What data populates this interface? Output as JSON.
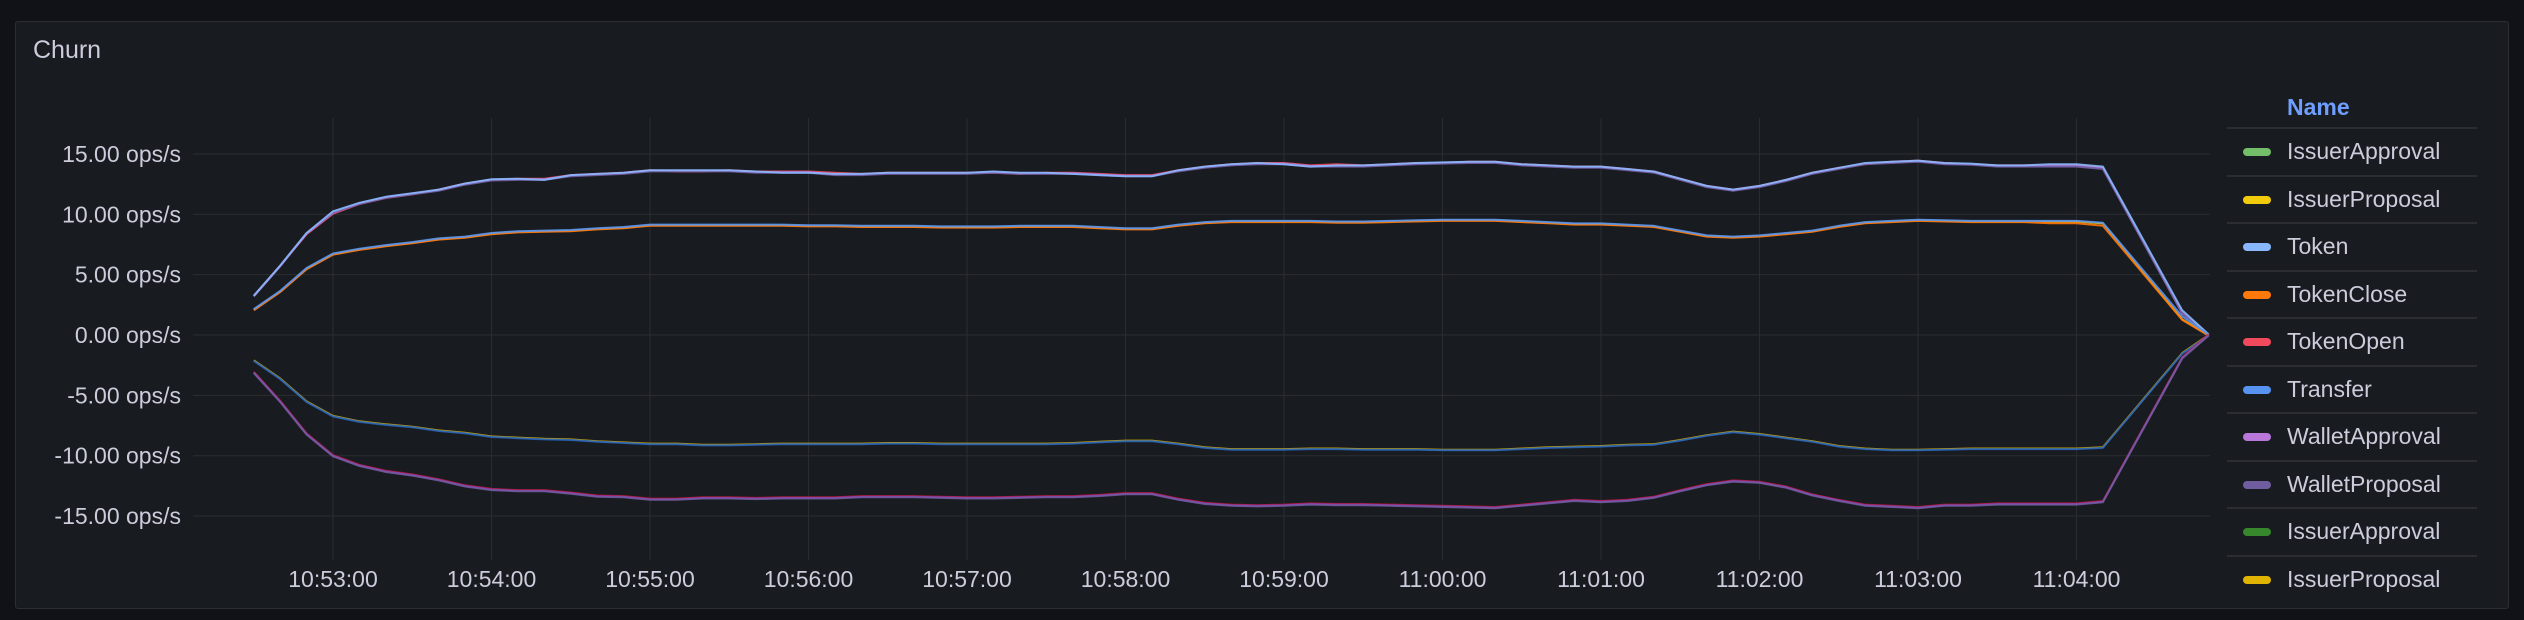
{
  "panel": {
    "title": "Churn"
  },
  "legend": {
    "header": "Name",
    "items": [
      {
        "name": "IssuerApproval",
        "color": "#73BF69"
      },
      {
        "name": "IssuerProposal",
        "color": "#F2CC0C"
      },
      {
        "name": "Token",
        "color": "#8AB8FF"
      },
      {
        "name": "TokenClose",
        "color": "#FF780A"
      },
      {
        "name": "TokenOpen",
        "color": "#F2495C"
      },
      {
        "name": "Transfer",
        "color": "#5794F2"
      },
      {
        "name": "WalletApproval",
        "color": "#B877D9"
      },
      {
        "name": "WalletProposal",
        "color": "#705DA0"
      },
      {
        "name": "IssuerApproval",
        "color": "#37872D"
      },
      {
        "name": "IssuerProposal",
        "color": "#E0B400"
      }
    ]
  },
  "chart_data": {
    "type": "line",
    "title": "Churn",
    "xlabel": "",
    "ylabel": "",
    "unit": "ops/s",
    "ylim": [
      -18,
      18
    ],
    "yticks": [
      "15.00 ops/s",
      "10.00 ops/s",
      "5.00 ops/s",
      "0.00 ops/s",
      "-5.00 ops/s",
      "-10.00 ops/s",
      "-15.00 ops/s"
    ],
    "ytick_values": [
      15,
      10,
      5,
      0,
      -5,
      -10,
      -15
    ],
    "xticks": [
      "10:53:00",
      "10:54:00",
      "10:55:00",
      "10:56:00",
      "10:57:00",
      "10:58:00",
      "10:59:00",
      "11:00:00",
      "11:01:00",
      "11:02:00",
      "11:03:00",
      "11:04:00"
    ],
    "grid": true,
    "legend_position": "right",
    "x": [
      "10:52:30",
      "10:52:40",
      "10:52:50",
      "10:53:00",
      "10:53:10",
      "10:53:20",
      "10:53:30",
      "10:53:40",
      "10:53:50",
      "10:54:00",
      "10:54:10",
      "10:54:20",
      "10:54:30",
      "10:54:40",
      "10:54:50",
      "10:55:00",
      "10:55:10",
      "10:55:20",
      "10:55:30",
      "10:55:40",
      "10:55:50",
      "10:56:00",
      "10:56:10",
      "10:56:20",
      "10:56:30",
      "10:56:40",
      "10:56:50",
      "10:57:00",
      "10:57:10",
      "10:57:20",
      "10:57:30",
      "10:57:40",
      "10:57:50",
      "10:58:00",
      "10:58:10",
      "10:58:20",
      "10:58:30",
      "10:58:40",
      "10:58:50",
      "10:59:00",
      "10:59:10",
      "10:59:20",
      "10:59:30",
      "10:59:40",
      "10:59:50",
      "11:00:00",
      "11:00:10",
      "11:00:20",
      "11:00:30",
      "11:00:40",
      "11:00:50",
      "11:01:00",
      "11:01:10",
      "11:01:20",
      "11:01:30",
      "11:01:40",
      "11:01:50",
      "11:02:00",
      "11:02:10",
      "11:02:20",
      "11:02:30",
      "11:02:40",
      "11:02:50",
      "11:03:00",
      "11:03:10",
      "11:03:20",
      "11:03:30",
      "11:03:40",
      "11:03:50",
      "11:04:00",
      "11:04:10",
      "11:04:40",
      "11:04:50"
    ],
    "series": [
      {
        "name": "TokenOpen",
        "group": "upper",
        "color": "#F2495C",
        "values": [
          3.2,
          5.7,
          8.3,
          10.0,
          10.8,
          11.3,
          11.6,
          12.0,
          12.5,
          12.8,
          12.9,
          12.9,
          13.2,
          13.3,
          13.4,
          13.6,
          13.5,
          13.5,
          13.6,
          13.5,
          13.5,
          13.5,
          13.4,
          13.3,
          13.4,
          13.4,
          13.4,
          13.4,
          13.4,
          13.3,
          13.4,
          13.4,
          13.3,
          13.2,
          13.2,
          13.6,
          13.9,
          14.1,
          14.2,
          14.2,
          14.0,
          14.1,
          14.0,
          14.1,
          14.2,
          14.2,
          14.3,
          14.3,
          14.1,
          14.0,
          13.9,
          13.9,
          13.7,
          13.5,
          12.9,
          12.3,
          12.0,
          12.3,
          12.8,
          13.4,
          13.8,
          14.1,
          14.3,
          14.4,
          14.2,
          14.1,
          14.0,
          14.0,
          14.0,
          14.0,
          13.8,
          1.8,
          0.0
        ]
      },
      {
        "name": "WalletApproval",
        "group": "upper",
        "color": "#B877D9",
        "values": [
          3.2,
          5.7,
          8.4,
          10.1,
          10.9,
          11.4,
          11.7,
          12.0,
          12.5,
          12.85,
          12.9,
          12.9,
          13.2,
          13.3,
          13.4,
          13.6,
          13.6,
          13.6,
          13.6,
          13.5,
          13.5,
          13.5,
          13.3,
          13.3,
          13.4,
          13.4,
          13.4,
          13.4,
          13.5,
          13.4,
          13.4,
          13.4,
          13.3,
          13.2,
          13.2,
          13.6,
          13.9,
          14.1,
          14.2,
          14.2,
          14.0,
          14.0,
          14.0,
          14.1,
          14.2,
          14.25,
          14.3,
          14.3,
          14.1,
          14.0,
          13.9,
          13.9,
          13.7,
          13.5,
          12.9,
          12.3,
          12.0,
          12.3,
          12.8,
          13.4,
          13.8,
          14.2,
          14.3,
          14.4,
          14.2,
          14.15,
          14.0,
          14.0,
          14.0,
          14.0,
          13.8,
          1.8,
          0.0
        ]
      },
      {
        "name": "WalletProposal",
        "group": "upper",
        "color": "#705DA0",
        "values": [
          3.3,
          5.8,
          8.5,
          10.2,
          10.9,
          11.4,
          11.7,
          12.0,
          12.5,
          12.85,
          12.9,
          12.9,
          13.2,
          13.3,
          13.4,
          13.6,
          13.6,
          13.6,
          13.6,
          13.5,
          13.5,
          13.5,
          13.3,
          13.3,
          13.4,
          13.4,
          13.4,
          13.4,
          13.5,
          13.4,
          13.4,
          13.4,
          13.3,
          13.2,
          13.2,
          13.6,
          13.9,
          14.1,
          14.2,
          14.2,
          14.0,
          14.0,
          14.0,
          14.1,
          14.2,
          14.25,
          14.3,
          14.3,
          14.1,
          14.0,
          13.9,
          13.9,
          13.7,
          13.5,
          12.9,
          12.3,
          12.0,
          12.3,
          12.8,
          13.4,
          13.8,
          14.2,
          14.3,
          14.4,
          14.2,
          14.15,
          14.0,
          14.0,
          14.0,
          14.0,
          13.8,
          1.9,
          0.0
        ]
      },
      {
        "name": "Token",
        "group": "upper",
        "color": "#8AB8FF",
        "values": [
          3.2,
          5.7,
          8.4,
          10.2,
          10.9,
          11.4,
          11.7,
          12.0,
          12.5,
          12.85,
          12.9,
          12.8,
          13.2,
          13.3,
          13.4,
          13.6,
          13.6,
          13.6,
          13.6,
          13.5,
          13.4,
          13.4,
          13.3,
          13.3,
          13.4,
          13.4,
          13.4,
          13.4,
          13.5,
          13.4,
          13.4,
          13.3,
          13.2,
          13.1,
          13.1,
          13.6,
          13.9,
          14.1,
          14.2,
          14.1,
          13.9,
          14.0,
          14.0,
          14.1,
          14.2,
          14.25,
          14.3,
          14.3,
          14.1,
          14.0,
          13.9,
          13.9,
          13.7,
          13.5,
          12.9,
          12.3,
          12.0,
          12.3,
          12.8,
          13.4,
          13.8,
          14.2,
          14.3,
          14.4,
          14.2,
          14.15,
          14.0,
          14.0,
          14.1,
          14.1,
          13.9,
          2.0,
          0.0
        ]
      },
      {
        "name": "IssuerProposal",
        "group": "lower",
        "color": "#F2CC0C",
        "values": [
          2.1,
          3.6,
          5.5,
          6.7,
          7.1,
          7.4,
          7.65,
          7.95,
          8.1,
          8.4,
          8.55,
          8.6,
          8.65,
          8.8,
          8.9,
          9.1,
          9.1,
          9.1,
          9.1,
          9.1,
          9.1,
          9.05,
          9.05,
          9.0,
          9.0,
          9.0,
          8.95,
          8.95,
          8.95,
          9.0,
          9.0,
          9.0,
          8.9,
          8.8,
          8.8,
          9.1,
          9.3,
          9.4,
          9.4,
          9.4,
          9.4,
          9.35,
          9.35,
          9.4,
          9.45,
          9.5,
          9.5,
          9.5,
          9.4,
          9.3,
          9.2,
          9.2,
          9.1,
          9.0,
          8.6,
          8.2,
          8.1,
          8.2,
          8.4,
          8.6,
          9.0,
          9.3,
          9.4,
          9.5,
          9.45,
          9.4,
          9.4,
          9.4,
          9.4,
          9.4,
          9.25,
          1.3,
          0.0
        ]
      },
      {
        "name": "TokenClose",
        "group": "lower",
        "color": "#FF780A",
        "values": [
          2.1,
          3.6,
          5.5,
          6.7,
          7.1,
          7.4,
          7.65,
          7.95,
          8.1,
          8.4,
          8.55,
          8.6,
          8.65,
          8.8,
          8.9,
          9.1,
          9.1,
          9.1,
          9.1,
          9.1,
          9.1,
          9.05,
          9.05,
          9.0,
          9.0,
          9.0,
          8.95,
          8.95,
          8.95,
          9.0,
          9.0,
          9.0,
          8.9,
          8.8,
          8.8,
          9.1,
          9.3,
          9.4,
          9.4,
          9.4,
          9.4,
          9.35,
          9.35,
          9.4,
          9.45,
          9.5,
          9.5,
          9.5,
          9.4,
          9.3,
          9.2,
          9.2,
          9.1,
          9.0,
          8.6,
          8.2,
          8.1,
          8.2,
          8.4,
          8.6,
          9.0,
          9.3,
          9.4,
          9.5,
          9.45,
          9.4,
          9.4,
          9.4,
          9.3,
          9.3,
          9.1,
          1.3,
          0.0
        ]
      },
      {
        "name": "Transfer",
        "group": "lower",
        "color": "#5794F2",
        "values": [
          2.1,
          3.6,
          5.5,
          6.7,
          7.1,
          7.4,
          7.65,
          7.95,
          8.1,
          8.4,
          8.55,
          8.6,
          8.65,
          8.8,
          8.9,
          9.1,
          9.1,
          9.1,
          9.1,
          9.1,
          9.1,
          9.05,
          9.05,
          9.0,
          9.0,
          9.0,
          8.95,
          8.95,
          8.95,
          9.0,
          9.0,
          9.0,
          8.9,
          8.8,
          8.8,
          9.1,
          9.3,
          9.4,
          9.4,
          9.4,
          9.4,
          9.35,
          9.35,
          9.4,
          9.45,
          9.5,
          9.5,
          9.5,
          9.4,
          9.3,
          9.2,
          9.2,
          9.1,
          9.0,
          8.6,
          8.2,
          8.1,
          8.2,
          8.4,
          8.6,
          9.0,
          9.3,
          9.4,
          9.5,
          9.45,
          9.4,
          9.4,
          9.4,
          9.4,
          9.4,
          9.25,
          1.5,
          0.0
        ]
      },
      {
        "name": "IssuerProposal (neg)",
        "group": "neg-upper",
        "color": "#E0B400",
        "values": [
          -2.1,
          -3.6,
          -5.5,
          -6.7,
          -7.15,
          -7.4,
          -7.6,
          -7.9,
          -8.1,
          -8.4,
          -8.5,
          -8.6,
          -8.65,
          -8.8,
          -8.9,
          -9.0,
          -9.0,
          -9.1,
          -9.1,
          -9.05,
          -9.0,
          -9.0,
          -9.0,
          -9.0,
          -8.95,
          -8.95,
          -9.0,
          -9.0,
          -9.0,
          -9.0,
          -9.0,
          -8.95,
          -8.85,
          -8.75,
          -8.75,
          -9.0,
          -9.3,
          -9.45,
          -9.45,
          -9.45,
          -9.4,
          -9.4,
          -9.45,
          -9.45,
          -9.45,
          -9.5,
          -9.5,
          -9.5,
          -9.4,
          -9.3,
          -9.25,
          -9.2,
          -9.1,
          -9.05,
          -8.7,
          -8.3,
          -8.0,
          -8.2,
          -8.5,
          -8.8,
          -9.2,
          -9.4,
          -9.5,
          -9.5,
          -9.45,
          -9.4,
          -9.4,
          -9.4,
          -9.4,
          -9.4,
          -9.3,
          -1.5,
          0.0
        ]
      },
      {
        "name": "Transfer (neg)",
        "group": "neg-upper",
        "color": "#1F60C4",
        "values": [
          -2.1,
          -3.6,
          -5.5,
          -6.7,
          -7.15,
          -7.4,
          -7.6,
          -7.9,
          -8.1,
          -8.4,
          -8.5,
          -8.6,
          -8.65,
          -8.8,
          -8.9,
          -9.0,
          -9.0,
          -9.1,
          -9.1,
          -9.05,
          -9.0,
          -9.0,
          -9.0,
          -9.0,
          -8.95,
          -8.95,
          -9.0,
          -9.0,
          -9.0,
          -9.0,
          -9.0,
          -8.95,
          -8.85,
          -8.75,
          -8.75,
          -9.0,
          -9.3,
          -9.45,
          -9.45,
          -9.45,
          -9.4,
          -9.4,
          -9.45,
          -9.45,
          -9.45,
          -9.5,
          -9.5,
          -9.5,
          -9.4,
          -9.3,
          -9.25,
          -9.2,
          -9.1,
          -9.05,
          -8.7,
          -8.3,
          -8.0,
          -8.2,
          -8.5,
          -8.8,
          -9.2,
          -9.4,
          -9.5,
          -9.5,
          -9.45,
          -9.4,
          -9.4,
          -9.4,
          -9.4,
          -9.4,
          -9.3,
          -1.5,
          0.0
        ]
      },
      {
        "name": "TokenOpen (neg)",
        "group": "neg-lower",
        "color": "#C4162A",
        "values": [
          -3.1,
          -5.5,
          -8.2,
          -10.0,
          -10.8,
          -11.3,
          -11.6,
          -12.0,
          -12.5,
          -12.8,
          -12.9,
          -12.9,
          -13.1,
          -13.35,
          -13.4,
          -13.6,
          -13.6,
          -13.5,
          -13.5,
          -13.55,
          -13.5,
          -13.5,
          -13.5,
          -13.4,
          -13.4,
          -13.4,
          -13.45,
          -13.5,
          -13.5,
          -13.45,
          -13.4,
          -13.4,
          -13.3,
          -13.15,
          -13.15,
          -13.6,
          -13.95,
          -14.1,
          -14.15,
          -14.1,
          -14.0,
          -14.05,
          -14.05,
          -14.1,
          -14.15,
          -14.2,
          -14.25,
          -14.3,
          -14.1,
          -13.9,
          -13.7,
          -13.8,
          -13.7,
          -13.45,
          -12.9,
          -12.4,
          -12.1,
          -12.2,
          -12.6,
          -13.25,
          -13.7,
          -14.1,
          -14.2,
          -14.3,
          -14.1,
          -14.1,
          -14.0,
          -14.0,
          -14.0,
          -14.0,
          -13.8,
          -1.9,
          0.0
        ]
      },
      {
        "name": "WalletApproval (neg)",
        "group": "neg-lower",
        "color": "#8F3BB8",
        "values": [
          -3.1,
          -5.5,
          -8.2,
          -10.0,
          -10.8,
          -11.3,
          -11.6,
          -12.0,
          -12.5,
          -12.8,
          -12.9,
          -12.9,
          -13.1,
          -13.35,
          -13.4,
          -13.6,
          -13.6,
          -13.5,
          -13.5,
          -13.55,
          -13.5,
          -13.5,
          -13.5,
          -13.4,
          -13.4,
          -13.4,
          -13.45,
          -13.5,
          -13.5,
          -13.45,
          -13.4,
          -13.4,
          -13.3,
          -13.15,
          -13.15,
          -13.6,
          -13.95,
          -14.1,
          -14.15,
          -14.1,
          -14.0,
          -14.05,
          -14.05,
          -14.1,
          -14.15,
          -14.2,
          -14.25,
          -14.3,
          -14.1,
          -13.9,
          -13.7,
          -13.8,
          -13.7,
          -13.45,
          -12.9,
          -12.4,
          -12.1,
          -12.2,
          -12.6,
          -13.25,
          -13.7,
          -14.1,
          -14.2,
          -14.3,
          -14.1,
          -14.1,
          -14.0,
          -14.0,
          -14.0,
          -14.0,
          -13.8,
          -1.9,
          0.0
        ]
      },
      {
        "name": "WalletProposal (neg)",
        "group": "neg-lower",
        "color": "#705DA0",
        "values": [
          -3.1,
          -5.5,
          -8.2,
          -10.0,
          -10.8,
          -11.3,
          -11.6,
          -12.0,
          -12.5,
          -12.8,
          -12.9,
          -12.9,
          -13.1,
          -13.35,
          -13.4,
          -13.6,
          -13.6,
          -13.5,
          -13.5,
          -13.55,
          -13.5,
          -13.5,
          -13.5,
          -13.4,
          -13.4,
          -13.4,
          -13.45,
          -13.5,
          -13.5,
          -13.45,
          -13.4,
          -13.4,
          -13.3,
          -13.15,
          -13.15,
          -13.6,
          -13.95,
          -14.1,
          -14.15,
          -14.1,
          -14.0,
          -14.05,
          -14.05,
          -14.1,
          -14.15,
          -14.2,
          -14.25,
          -14.3,
          -14.1,
          -13.9,
          -13.7,
          -13.8,
          -13.7,
          -13.45,
          -12.9,
          -12.4,
          -12.1,
          -12.2,
          -12.6,
          -13.25,
          -13.7,
          -14.1,
          -14.2,
          -14.3,
          -14.1,
          -14.1,
          -14.0,
          -14.0,
          -14.0,
          -14.0,
          -13.8,
          -1.9,
          0.0
        ]
      }
    ]
  }
}
